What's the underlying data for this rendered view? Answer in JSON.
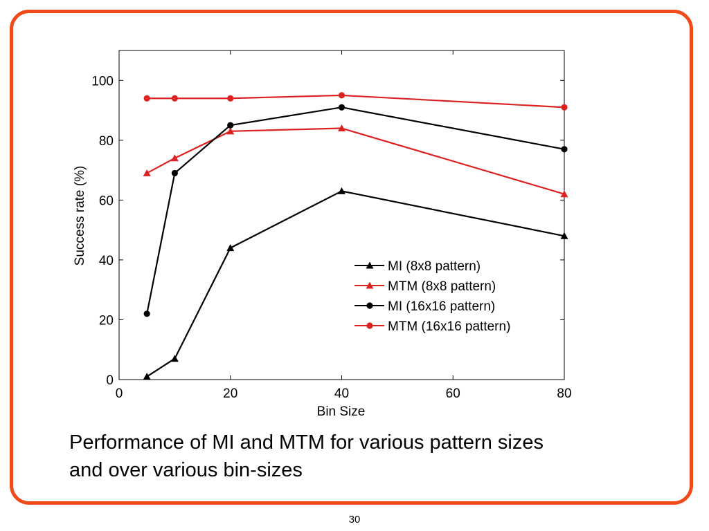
{
  "slide": {
    "caption_line1": "Performance of MI and MTM for various pattern sizes",
    "caption_line2": "and over various bin-sizes",
    "page_number": "30",
    "frame_color": "#f04a1a"
  },
  "chart_data": {
    "type": "line",
    "title": "",
    "xlabel": "Bin Size",
    "ylabel": "Success rate (%)",
    "xlim": [
      0,
      80
    ],
    "ylim": [
      0,
      110
    ],
    "xticks": [
      0,
      20,
      40,
      60,
      80
    ],
    "yticks": [
      0,
      20,
      40,
      60,
      80,
      100
    ],
    "grid": false,
    "legend_position": "lower-right",
    "x": [
      5,
      10,
      20,
      40,
      80
    ],
    "series": [
      {
        "name": "MI (8x8 pattern)",
        "marker": "triangle",
        "color": "#000000",
        "values": [
          1,
          7,
          44,
          63,
          48
        ]
      },
      {
        "name": "MTM (8x8 pattern)",
        "marker": "triangle",
        "color": "#dd2222",
        "values": [
          69,
          74,
          83,
          84,
          62
        ]
      },
      {
        "name": "MI (16x16 pattern)",
        "marker": "circle",
        "color": "#000000",
        "values": [
          22,
          69,
          85,
          91,
          77
        ]
      },
      {
        "name": "MTM (16x16 pattern)",
        "marker": "circle",
        "color": "#dd2222",
        "values": [
          94,
          94,
          94,
          95,
          91
        ]
      }
    ]
  }
}
